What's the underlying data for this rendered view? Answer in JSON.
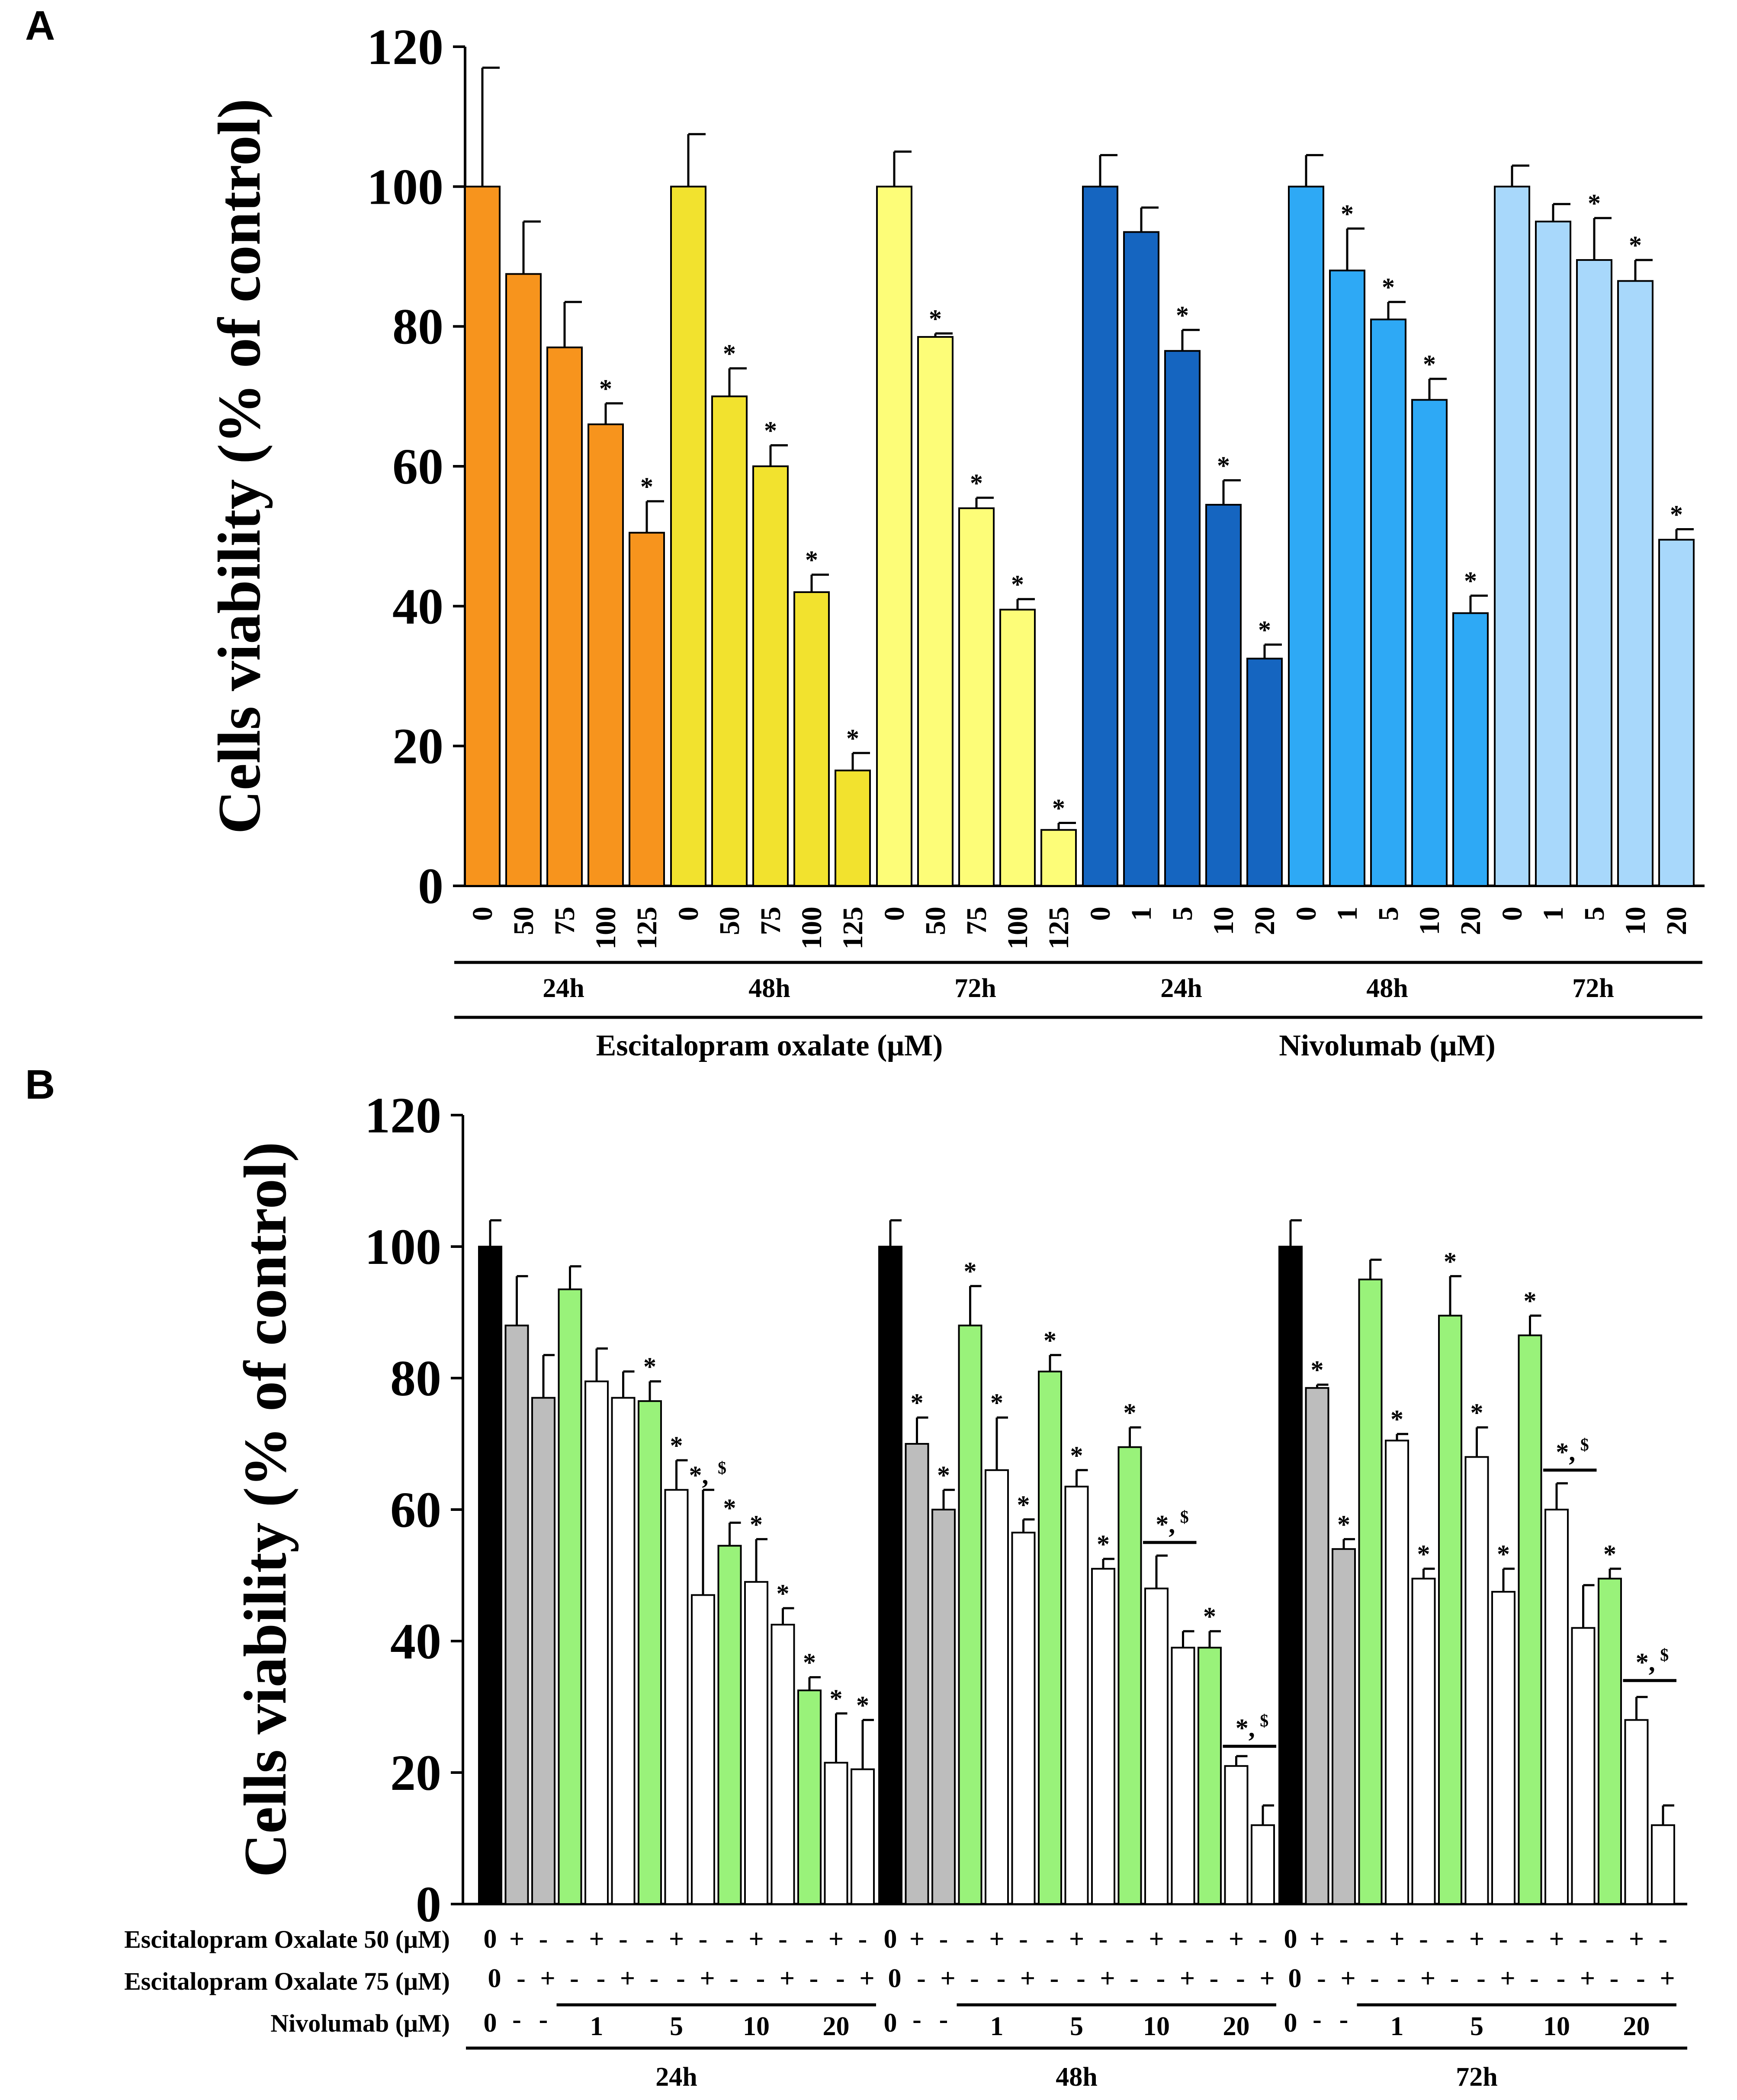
{
  "chart_data": [
    {
      "panel": "A",
      "type": "bar",
      "ylabel": "Cells viability (% of control)",
      "ylim": [
        0,
        120
      ],
      "yticks": [
        "0",
        "20",
        "40",
        "60",
        "80",
        "100",
        "120"
      ],
      "sig_marker": "*",
      "groups": [
        {
          "time": "24h",
          "drug": "Escitalopram oxalate (μM)",
          "color": "#f7941d",
          "categories": [
            "0",
            "50",
            "75",
            "100",
            "125"
          ],
          "values": [
            100,
            87.5,
            77,
            66,
            50.5
          ],
          "errors": [
            17,
            7.5,
            6.5,
            3,
            4.5
          ],
          "sig": [
            false,
            false,
            false,
            true,
            true
          ]
        },
        {
          "time": "48h",
          "drug": "Escitalopram oxalate (μM)",
          "color": "#f2e22e",
          "categories": [
            "0",
            "50",
            "75",
            "100",
            "125"
          ],
          "values": [
            100,
            70,
            60,
            42,
            16.5
          ],
          "errors": [
            7.5,
            4,
            3,
            2.5,
            2.5
          ],
          "sig": [
            false,
            true,
            true,
            true,
            true
          ]
        },
        {
          "time": "72h",
          "drug": "Escitalopram oxalate (μM)",
          "color": "#fdfd78",
          "categories": [
            "0",
            "50",
            "75",
            "100",
            "125"
          ],
          "values": [
            100,
            78.5,
            54,
            39.5,
            8
          ],
          "errors": [
            5,
            0.5,
            1.5,
            1.5,
            1
          ],
          "sig": [
            false,
            true,
            true,
            true,
            true
          ]
        },
        {
          "time": "24h",
          "drug": "Nivolumab (μM)",
          "color": "#1565c0",
          "categories": [
            "0",
            "1",
            "5",
            "10",
            "20"
          ],
          "values": [
            100,
            93.5,
            76.5,
            54.5,
            32.5
          ],
          "errors": [
            4.5,
            3.5,
            3,
            3.5,
            2
          ],
          "sig": [
            false,
            false,
            true,
            true,
            true
          ]
        },
        {
          "time": "48h",
          "drug": "Nivolumab (μM)",
          "color": "#2ea9f5",
          "categories": [
            "0",
            "1",
            "5",
            "10",
            "20"
          ],
          "values": [
            100,
            88,
            81,
            69.5,
            39
          ],
          "errors": [
            4.5,
            6,
            2.5,
            3,
            2.5
          ],
          "sig": [
            false,
            true,
            true,
            true,
            true
          ]
        },
        {
          "time": "72h",
          "drug": "Nivolumab (μM)",
          "color": "#a8d8fb",
          "categories": [
            "0",
            "1",
            "5",
            "10",
            "20"
          ],
          "values": [
            100,
            95,
            89.5,
            86.5,
            49.5
          ],
          "errors": [
            3,
            2.5,
            6,
            3,
            1.5
          ],
          "sig": [
            false,
            false,
            true,
            true,
            true
          ]
        }
      ],
      "drug_labels": [
        "Escitalopram oxalate (μM)",
        "Nivolumab (μM)"
      ]
    },
    {
      "panel": "B",
      "type": "bar",
      "ylabel": "Cells viability (% of control)",
      "ylim": [
        0,
        120
      ],
      "yticks": [
        "0",
        "20",
        "40",
        "60",
        "80",
        "100",
        "120"
      ],
      "row_labels": [
        "Escitalopram Oxalate 50 (μM)",
        "Escitalopram Oxalate 75 (μM)",
        "Nivolumab (μM)"
      ],
      "colors": {
        "control": "#000000",
        "escitalopram": "#bdbdbd",
        "nivolumab": "#99f27a",
        "combination": "#ffffff"
      },
      "groups": [
        {
          "time": "24h",
          "kinds": [
            "control",
            "escitalopram",
            "escitalopram",
            "nivolumab",
            "combination",
            "combination",
            "nivolumab",
            "combination",
            "combination",
            "nivolumab",
            "combination",
            "combination",
            "nivolumab",
            "combination",
            "combination"
          ],
          "values": [
            100,
            88,
            77,
            93.5,
            79.5,
            77,
            76.5,
            63,
            47,
            54.5,
            49,
            42.5,
            32.5,
            21.5,
            20.5
          ],
          "errors": [
            4,
            7.5,
            6.5,
            3.5,
            5,
            4,
            3,
            4.5,
            16,
            3.5,
            6.5,
            2.5,
            2,
            7.5,
            7.5
          ],
          "sig": [
            "",
            "",
            "",
            "",
            "",
            "",
            "*",
            "*",
            "*,$",
            "*",
            "*",
            "*",
            "*",
            "*",
            "*"
          ],
          "e50": [
            "0",
            "+",
            "-",
            "-",
            "+",
            "-",
            "-",
            "+",
            "-",
            "-",
            "+",
            "-",
            "-",
            "+",
            "-"
          ],
          "e75": [
            "0",
            "-",
            "+",
            "-",
            "-",
            "+",
            "-",
            "-",
            "+",
            "-",
            "-",
            "+",
            "-",
            "-",
            "+"
          ],
          "nivo": [
            "0",
            "-",
            "-",
            "1",
            "5",
            "10",
            "20"
          ],
          "bracket": null
        },
        {
          "time": "48h",
          "kinds": [
            "control",
            "escitalopram",
            "escitalopram",
            "nivolumab",
            "combination",
            "combination",
            "nivolumab",
            "combination",
            "combination",
            "nivolumab",
            "combination",
            "combination",
            "nivolumab",
            "combination",
            "combination"
          ],
          "values": [
            100,
            70,
            60,
            88,
            66,
            56.5,
            81,
            63.5,
            51,
            69.5,
            48,
            39,
            39,
            21,
            12
          ],
          "errors": [
            4,
            4,
            3,
            6,
            8,
            2,
            2.5,
            2.5,
            1.5,
            3,
            5,
            2.5,
            2.5,
            1.5,
            3
          ],
          "sig": [
            "",
            "*",
            "*",
            "*",
            "*",
            "*",
            "*",
            "*",
            "*",
            "*",
            "",
            "",
            "*",
            "",
            ""
          ],
          "e50": [
            "0",
            "+",
            "-",
            "-",
            "+",
            "-",
            "-",
            "+",
            "-",
            "-",
            "+",
            "-",
            "-",
            "+",
            "-"
          ],
          "e75": [
            "0",
            "-",
            "+",
            "-",
            "-",
            "+",
            "-",
            "-",
            "+",
            "-",
            "-",
            "+",
            "-",
            "-",
            "+"
          ],
          "nivo": [
            "0",
            "-",
            "-",
            "1",
            "5",
            "10",
            "20"
          ],
          "brackets": [
            {
              "from": 10,
              "to": 11,
              "value": 55,
              "label": "*,$"
            },
            {
              "from": 13,
              "to": 14,
              "value": 24,
              "label": "*,$"
            }
          ]
        },
        {
          "time": "72h",
          "kinds": [
            "control",
            "escitalopram",
            "escitalopram",
            "nivolumab",
            "combination",
            "combination",
            "nivolumab",
            "combination",
            "combination",
            "nivolumab",
            "combination",
            "combination",
            "nivolumab",
            "combination",
            "combination"
          ],
          "values": [
            100,
            78.5,
            54,
            95,
            70.5,
            49.5,
            89.5,
            68,
            47.5,
            86.5,
            60,
            42,
            49.5,
            28,
            12
          ],
          "errors": [
            4,
            0.5,
            1.5,
            3,
            1,
            1.5,
            6,
            4.5,
            3.5,
            3,
            4,
            6.5,
            1.5,
            3.5,
            3
          ],
          "sig": [
            "",
            "*",
            "*",
            "",
            "*",
            "*",
            "*",
            "*",
            "*",
            "*",
            "",
            "",
            "*",
            "",
            ""
          ],
          "e50": [
            "0",
            "+",
            "-",
            "-",
            "+",
            "-",
            "-",
            "+",
            "-",
            "-",
            "+",
            "-",
            "-",
            "+",
            "-"
          ],
          "e75": [
            "0",
            "-",
            "+",
            "-",
            "-",
            "+",
            "-",
            "-",
            "+",
            "-",
            "-",
            "+",
            "-",
            "-",
            "+"
          ],
          "nivo": [
            "0",
            "-",
            "-",
            "1",
            "5",
            "10",
            "20"
          ],
          "brackets": [
            {
              "from": 10,
              "to": 11,
              "value": 66,
              "label": "*,$"
            },
            {
              "from": 13,
              "to": 14,
              "value": 34,
              "label": "*,$"
            }
          ]
        }
      ]
    }
  ],
  "panels": {
    "a": "A",
    "b": "B"
  }
}
